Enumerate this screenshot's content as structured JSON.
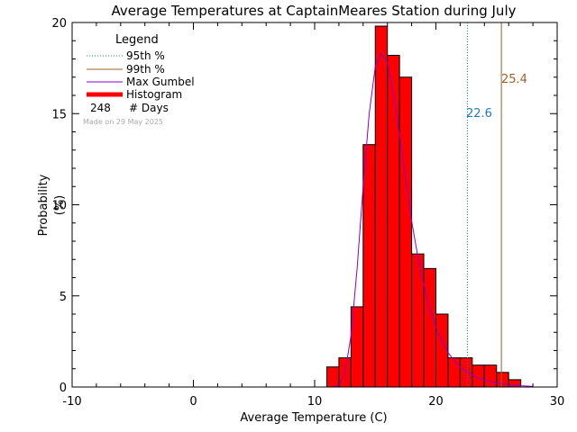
{
  "chart_data": {
    "type": "bar",
    "title": "Average Temperatures at CaptainMeares Station during July",
    "xlabel": "Average Temperature (C)",
    "ylabel_top": "Probability",
    "ylabel_bottom": "(%)",
    "xlim": [
      -10,
      30
    ],
    "ylim": [
      0,
      20
    ],
    "xticks": [
      "-10",
      "0",
      "10",
      "20",
      "30"
    ],
    "yticks": [
      "0",
      "5",
      "10",
      "15",
      "20"
    ],
    "histogram": {
      "bin_width": 1,
      "bin_starts": [
        11,
        12,
        13,
        14,
        15,
        16,
        17,
        18,
        19,
        20,
        21,
        22,
        23,
        24,
        25,
        26
      ],
      "values": [
        1.1,
        1.6,
        4.4,
        13.3,
        19.8,
        18.2,
        17.0,
        7.3,
        6.5,
        4.0,
        1.6,
        1.6,
        1.2,
        1.2,
        0.8,
        0.4
      ]
    },
    "gumbel": {
      "x": [
        11.5,
        12.0,
        12.5,
        13.0,
        13.5,
        14.0,
        14.5,
        15.0,
        15.5,
        16.0,
        16.5,
        17.0,
        17.5,
        18.0,
        18.5,
        19.0,
        19.5,
        20.0,
        20.5,
        21.0,
        21.5,
        22.0,
        22.5,
        23.0,
        23.5,
        24.0,
        24.5,
        25.0,
        25.5,
        26.0,
        26.5,
        27.0,
        27.5,
        28.0
      ],
      "y": [
        0.0,
        0.1,
        0.8,
        2.8,
        6.5,
        11.0,
        15.0,
        17.6,
        18.3,
        17.8,
        16.1,
        13.8,
        11.4,
        9.1,
        7.2,
        5.6,
        4.3,
        3.3,
        2.5,
        1.9,
        1.45,
        1.1,
        0.85,
        0.65,
        0.5,
        0.38,
        0.29,
        0.22,
        0.17,
        0.13,
        0.1,
        0.07,
        0.05,
        0.03
      ]
    },
    "percentile_95": {
      "value": 22.6,
      "label": "22.6",
      "color": "#1f77c4"
    },
    "percentile_99": {
      "value": 25.4,
      "label": "25.4",
      "color": "#a0602a"
    },
    "colors": {
      "histogram": "#ff0000",
      "gumbel": "#8a00d4",
      "axes": "#000000"
    },
    "legend": {
      "title": "Legend",
      "placement": "top-left",
      "entries": [
        {
          "label": "95th %",
          "style": "dotted",
          "color": "#1f77c4"
        },
        {
          "label": "99th %",
          "style": "solid",
          "color": "#a0602a"
        },
        {
          "label": "Max Gumbel",
          "style": "solid",
          "color": "#8a00d4"
        },
        {
          "label": "Histogram",
          "style": "thick",
          "color": "#ff0000"
        }
      ],
      "days_count": "248",
      "days_label": "# Days"
    },
    "made_on": "Made on 29 May 2025"
  }
}
